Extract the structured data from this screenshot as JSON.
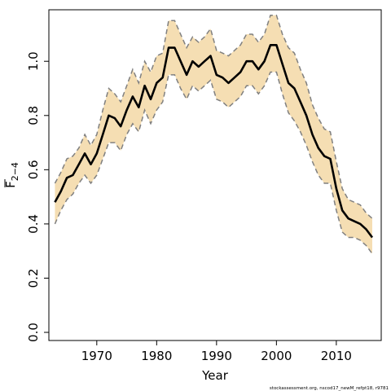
{
  "chart_data": {
    "type": "line",
    "xlabel": "Year",
    "ylabel_main": "F",
    "ylabel_sub": "2−4",
    "footnote": "stockassessment.org, nscod17_newM_refpt18, r9781",
    "xlim": [
      1962,
      2017.5
    ],
    "ylim": [
      -0.03,
      1.19
    ],
    "x_ticks": [
      1970,
      1980,
      1990,
      2000,
      2010
    ],
    "x_tick_labels": [
      "1970",
      "1980",
      "1990",
      "2000",
      "2010"
    ],
    "y_ticks": [
      0.0,
      0.2,
      0.4,
      0.6,
      0.8,
      1.0
    ],
    "y_tick_labels": [
      "0.0",
      "0.2",
      "0.4",
      "0.6",
      "0.8",
      "1.0"
    ],
    "grid": false,
    "colors": {
      "band": "#f5deb3",
      "estimate": "#000000",
      "bounds": "#808080"
    },
    "series": [
      {
        "role": "estimate",
        "x": [
          1963,
          1964,
          1965,
          1966,
          1967,
          1968,
          1969,
          1970,
          1971,
          1972,
          1973,
          1974,
          1975,
          1976,
          1977,
          1978,
          1979,
          1980,
          1981,
          1982,
          1983,
          1984,
          1985,
          1986,
          1987,
          1988,
          1989,
          1990,
          1991,
          1992,
          1993,
          1994,
          1995,
          1996,
          1997,
          1998,
          1999,
          2000,
          2001,
          2002,
          2003,
          2004,
          2005,
          2006,
          2007,
          2008,
          2009,
          2010,
          2011,
          2012,
          2013,
          2014,
          2015,
          2016
        ],
        "values": [
          0.48,
          0.52,
          0.57,
          0.58,
          0.62,
          0.66,
          0.62,
          0.66,
          0.73,
          0.8,
          0.79,
          0.76,
          0.82,
          0.87,
          0.83,
          0.91,
          0.86,
          0.92,
          0.94,
          1.05,
          1.05,
          1.0,
          0.95,
          1.0,
          0.98,
          1.0,
          1.02,
          0.95,
          0.94,
          0.92,
          0.94,
          0.96,
          1.0,
          1.0,
          0.97,
          1.0,
          1.06,
          1.06,
          0.99,
          0.92,
          0.9,
          0.85,
          0.8,
          0.73,
          0.68,
          0.65,
          0.64,
          0.53,
          0.45,
          0.42,
          0.41,
          0.4,
          0.38,
          0.35
        ]
      },
      {
        "role": "upper",
        "x": [
          1963,
          1964,
          1965,
          1966,
          1967,
          1968,
          1969,
          1970,
          1971,
          1972,
          1973,
          1974,
          1975,
          1976,
          1977,
          1978,
          1979,
          1980,
          1981,
          1982,
          1983,
          1984,
          1985,
          1986,
          1987,
          1988,
          1989,
          1990,
          1991,
          1992,
          1993,
          1994,
          1995,
          1996,
          1997,
          1998,
          1999,
          2000,
          2001,
          2002,
          2003,
          2004,
          2005,
          2006,
          2007,
          2008,
          2009,
          2010,
          2011,
          2012,
          2013,
          2014,
          2015,
          2016
        ],
        "values": [
          0.55,
          0.59,
          0.64,
          0.65,
          0.68,
          0.73,
          0.69,
          0.73,
          0.82,
          0.9,
          0.88,
          0.85,
          0.91,
          0.97,
          0.92,
          1.0,
          0.96,
          1.02,
          1.03,
          1.15,
          1.15,
          1.1,
          1.05,
          1.09,
          1.07,
          1.09,
          1.12,
          1.04,
          1.03,
          1.02,
          1.04,
          1.06,
          1.1,
          1.1,
          1.07,
          1.1,
          1.17,
          1.17,
          1.1,
          1.05,
          1.03,
          0.97,
          0.92,
          0.84,
          0.79,
          0.75,
          0.74,
          0.63,
          0.53,
          0.49,
          0.48,
          0.47,
          0.44,
          0.42
        ]
      },
      {
        "role": "lower",
        "x": [
          1963,
          1964,
          1965,
          1966,
          1967,
          1968,
          1969,
          1970,
          1971,
          1972,
          1973,
          1974,
          1975,
          1976,
          1977,
          1978,
          1979,
          1980,
          1981,
          1982,
          1983,
          1984,
          1985,
          1986,
          1987,
          1988,
          1989,
          1990,
          1991,
          1992,
          1993,
          1994,
          1995,
          1996,
          1997,
          1998,
          1999,
          2000,
          2001,
          2002,
          2003,
          2004,
          2005,
          2006,
          2007,
          2008,
          2009,
          2010,
          2011,
          2012,
          2013,
          2014,
          2015,
          2016
        ],
        "values": [
          0.4,
          0.45,
          0.49,
          0.51,
          0.55,
          0.58,
          0.55,
          0.58,
          0.64,
          0.7,
          0.7,
          0.67,
          0.73,
          0.77,
          0.74,
          0.82,
          0.77,
          0.82,
          0.85,
          0.95,
          0.95,
          0.9,
          0.86,
          0.91,
          0.89,
          0.91,
          0.93,
          0.86,
          0.85,
          0.83,
          0.85,
          0.87,
          0.91,
          0.91,
          0.88,
          0.91,
          0.96,
          0.96,
          0.88,
          0.81,
          0.78,
          0.74,
          0.69,
          0.63,
          0.58,
          0.55,
          0.55,
          0.45,
          0.37,
          0.35,
          0.35,
          0.34,
          0.32,
          0.29
        ]
      }
    ]
  }
}
